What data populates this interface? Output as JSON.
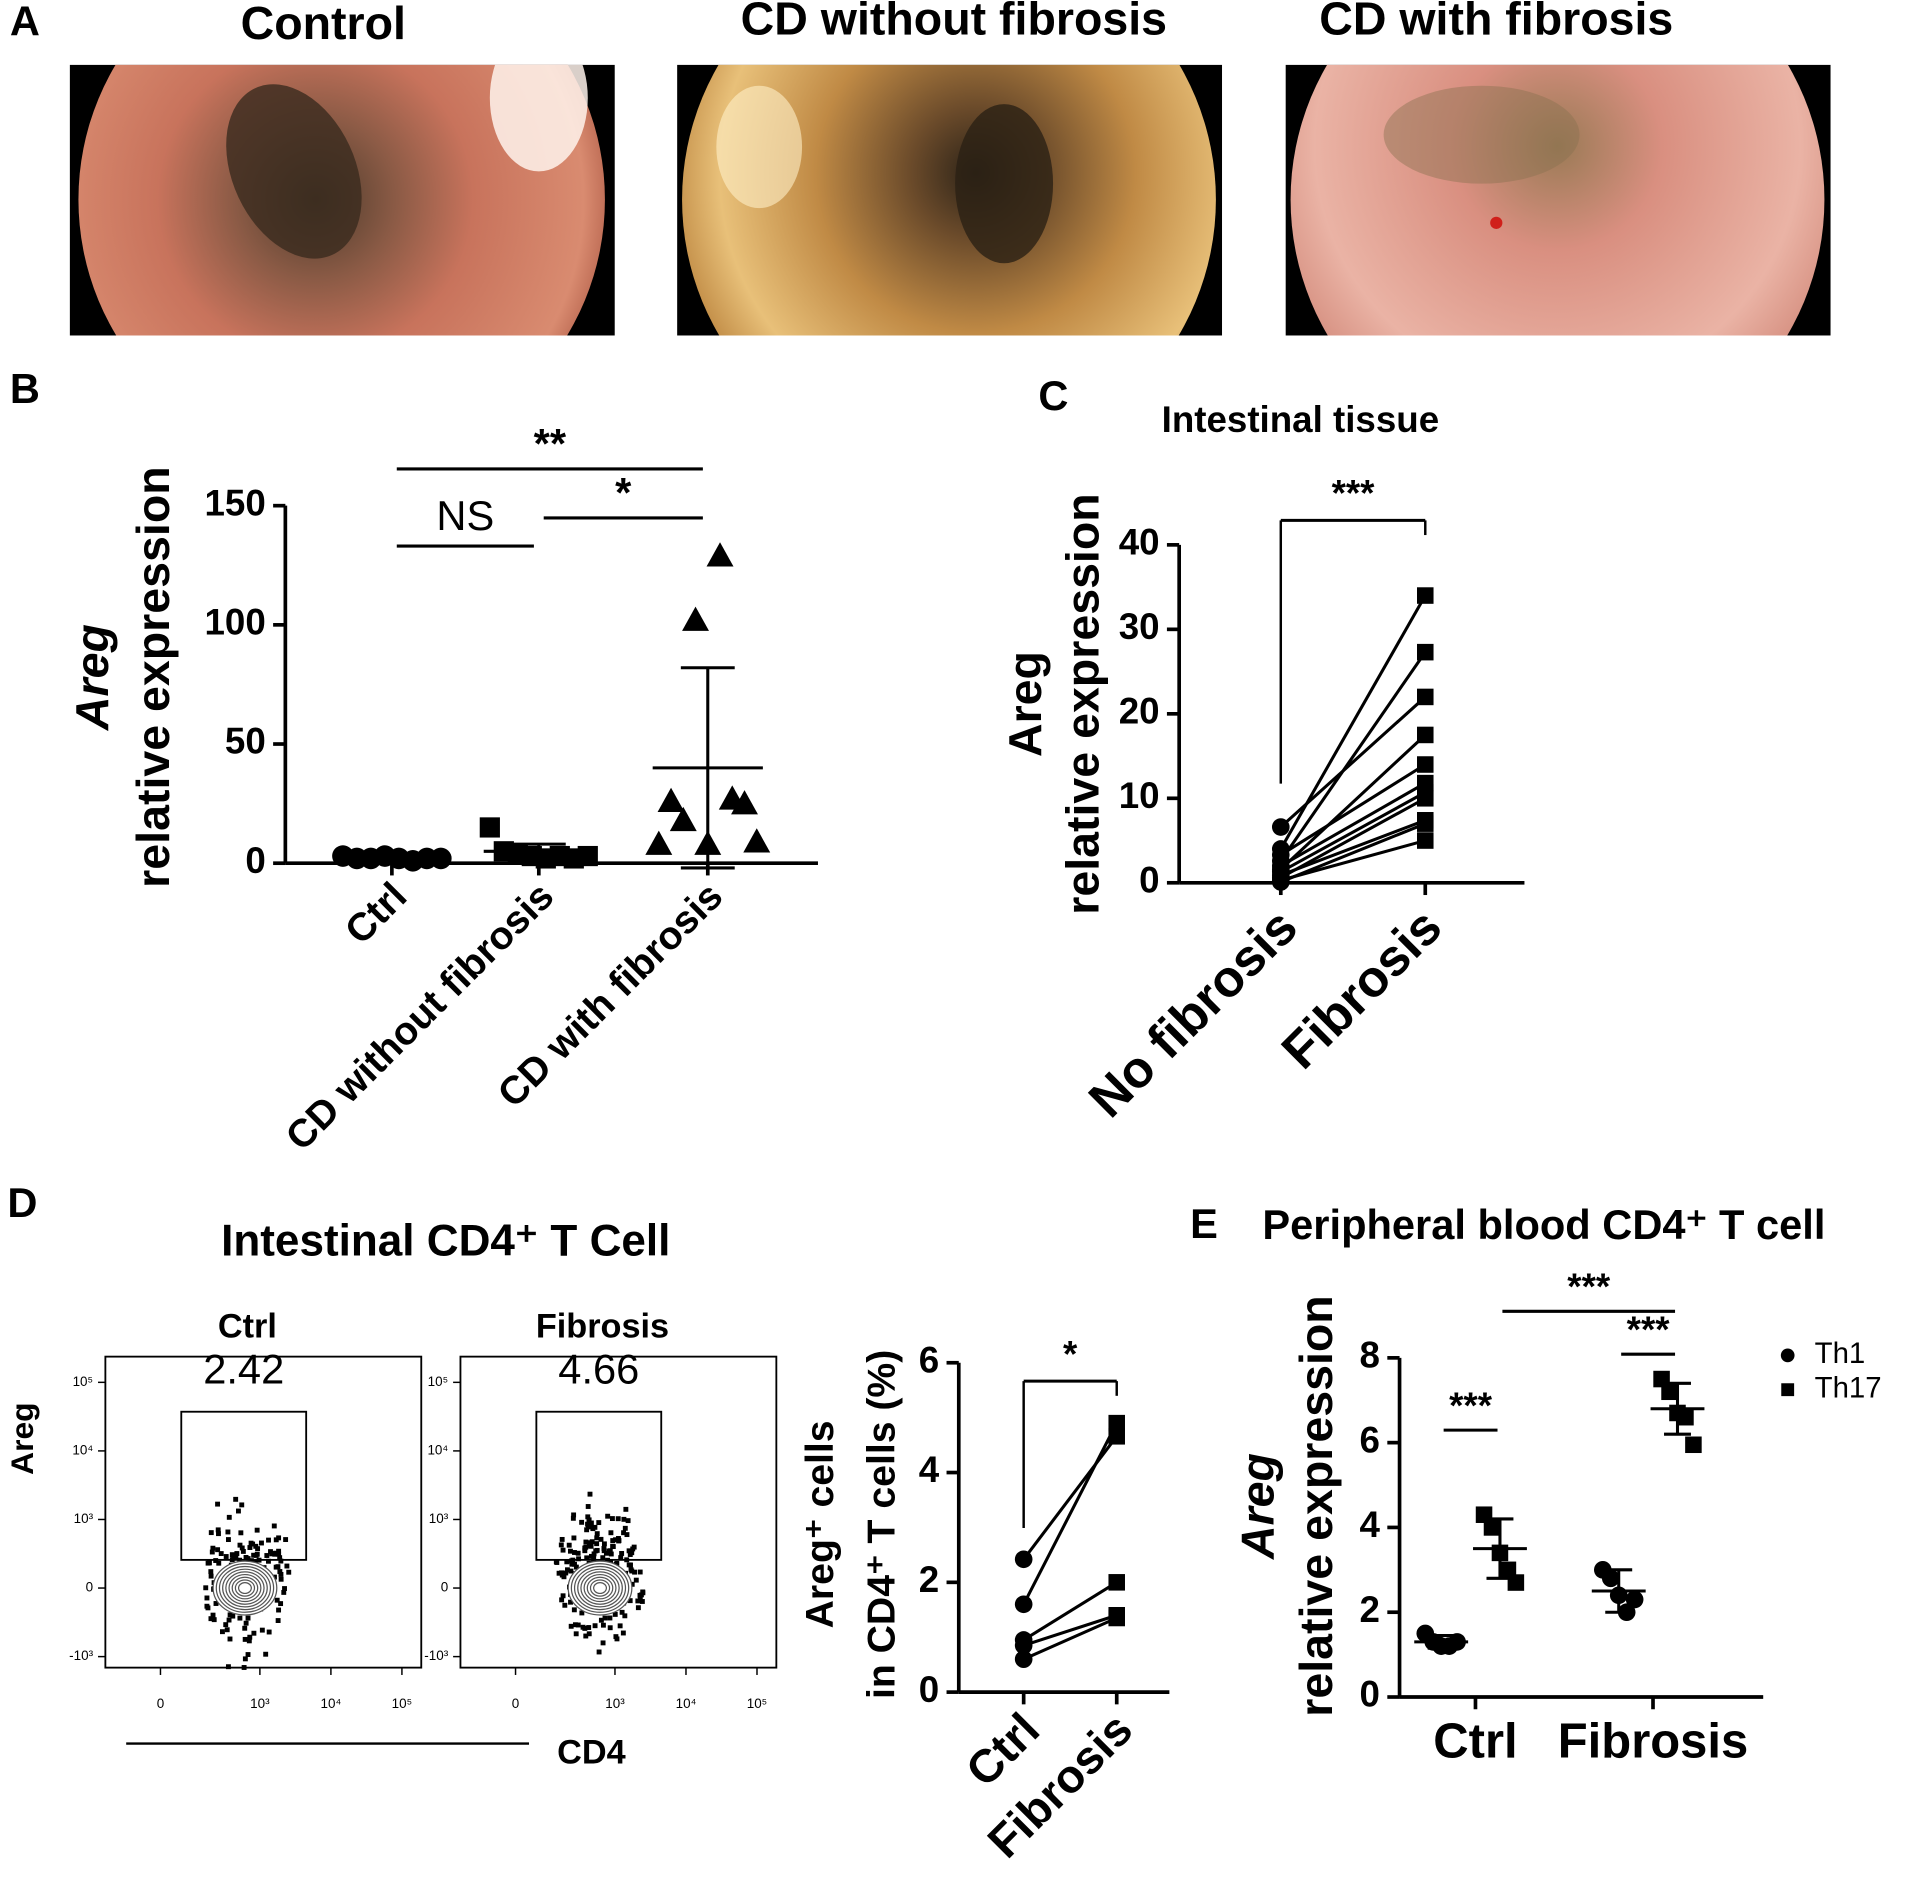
{
  "panel_labels": [
    "A",
    "B",
    "C",
    "D",
    "E"
  ],
  "panel_a": {
    "titles": [
      "Control",
      "CD without fibrosis",
      "CD with fibrosis"
    ]
  },
  "chart_data": [
    {
      "type": "dot",
      "categories": [
        "Ctrl",
        "CD without fibrosis",
        "CD with fibrosis"
      ],
      "ylabel": [
        "Areg",
        "relative expression"
      ],
      "gene_italic": true,
      "ylim": [
        0,
        150
      ],
      "yticks": [
        0,
        50,
        100,
        150
      ],
      "color": "#000000",
      "groups": [
        {
          "marker": "circle",
          "values": [
            3,
            2,
            2,
            3,
            2,
            1,
            2,
            2
          ],
          "mean": 2,
          "sd": 0.8
        },
        {
          "marker": "square",
          "values": [
            15,
            5,
            4,
            3,
            2,
            3,
            2,
            3
          ],
          "mean": 5,
          "sd": 3
        },
        {
          "marker": "triangle",
          "values": [
            8,
            26,
            18,
            102,
            8,
            129,
            27,
            25,
            9
          ],
          "mean": 40,
          "sd": 42
        }
      ],
      "significance": [
        {
          "label": "**",
          "between": [
            "Ctrl",
            "CD with fibrosis"
          ]
        },
        {
          "label": "NS",
          "between": [
            "Ctrl",
            "CD without fibrosis"
          ]
        },
        {
          "label": "*",
          "between": [
            "CD without fibrosis",
            "CD with fibrosis"
          ]
        }
      ]
    },
    {
      "type": "paired",
      "title": "Intestinal tissue",
      "categories": [
        "No fibrosis",
        "Fibrosis"
      ],
      "ylabel": [
        "Areg",
        "relative expression"
      ],
      "gene_italic": false,
      "ylim": [
        0,
        40
      ],
      "yticks": [
        0,
        10,
        20,
        30,
        40
      ],
      "color": "#000000",
      "bracket": true,
      "groups": [
        {
          "marker": "circle",
          "values": [
            6.6,
            4.0,
            3.3,
            2.6,
            2.0,
            1.6,
            1.3,
            0.9,
            0.6,
            0.3,
            0.1
          ]
        },
        {
          "marker": "square",
          "values": [
            22,
            34,
            14,
            27.3,
            11.8,
            17.5,
            10.7,
            7.4,
            10,
            5,
            7
          ]
        }
      ],
      "significance": [
        {
          "label": "***",
          "between": [
            "No fibrosis",
            "Fibrosis"
          ]
        }
      ]
    },
    {
      "type": "flow",
      "title": "Intestinal CD4⁺ T Cell",
      "ylabel": "Areg",
      "xlabel": "CD4",
      "panels": [
        {
          "title": "Ctrl",
          "gate_percent": 2.42
        },
        {
          "title": "Fibrosis",
          "gate_percent": 4.66
        }
      ],
      "xticks": [
        0,
        {
          "value": 1000,
          "label": "10³"
        },
        {
          "value": 10000,
          "label": "10⁴"
        },
        {
          "value": 100000,
          "label": "10⁵"
        }
      ],
      "yticks": [
        {
          "value": -1000,
          "label": "-10³"
        },
        0,
        {
          "value": 1000,
          "label": "10³"
        },
        {
          "value": 10000,
          "label": "10⁴"
        },
        {
          "value": 100000,
          "label": "10⁵"
        }
      ]
    },
    {
      "type": "paired",
      "categories": [
        "Ctrl",
        "Fibrosis"
      ],
      "ylabel": [
        "Areg⁺ cells",
        "in CD4⁺ T cells (%)"
      ],
      "gene_italic": false,
      "ylim": [
        0,
        6
      ],
      "yticks": [
        0,
        2,
        4,
        6
      ],
      "color": "#000000",
      "bracket": true,
      "groups": [
        {
          "marker": "circle",
          "values": [
            2.42,
            1.6,
            0.95,
            0.85,
            0.6
          ]
        },
        {
          "marker": "square",
          "values": [
            4.66,
            4.9,
            2.0,
            1.4,
            1.35
          ]
        }
      ],
      "significance": [
        {
          "label": "*",
          "between": [
            "Ctrl",
            "Fibrosis"
          ]
        }
      ]
    },
    {
      "type": "dot_grouped",
      "title": "Peripheral blood CD4⁺ T cell",
      "categories": [
        "Ctrl",
        "Fibrosis"
      ],
      "ylabel": [
        "Areg",
        "relative expression"
      ],
      "gene_italic": true,
      "ylim": [
        0,
        8
      ],
      "yticks": [
        0,
        2,
        4,
        6,
        8
      ],
      "series": [
        {
          "name": "Th1",
          "marker": "circle",
          "color": "#000000",
          "values": [
            [
              1.5,
              1.3,
              1.2,
              1.2,
              1.3
            ],
            [
              3.0,
              2.8,
              2.4,
              2.0,
              2.3
            ]
          ],
          "mean": [
            1.3,
            2.5
          ],
          "sd": [
            0.15,
            0.5
          ]
        },
        {
          "name": "Th17",
          "marker": "square",
          "color": "#000000",
          "values": [
            [
              4.3,
              4.0,
              3.4,
              3.0,
              2.7
            ],
            [
              7.5,
              7.2,
              6.7,
              6.6,
              5.95
            ]
          ],
          "mean": [
            3.5,
            6.8
          ],
          "sd": [
            0.7,
            0.6
          ]
        }
      ],
      "significance": [
        {
          "label": "***",
          "between": [
            {
              "category": "Ctrl",
              "series": "Th1"
            },
            {
              "category": "Ctrl",
              "series": "Th17"
            }
          ]
        },
        {
          "label": "***",
          "between": [
            {
              "category": "Fibrosis",
              "series": "Th1"
            },
            {
              "category": "Fibrosis",
              "series": "Th17"
            }
          ]
        },
        {
          "label": "***",
          "between": [
            {
              "category": "Ctrl",
              "series": "Th17"
            },
            {
              "category": "Fibrosis",
              "series": "Th17"
            }
          ]
        }
      ]
    }
  ]
}
